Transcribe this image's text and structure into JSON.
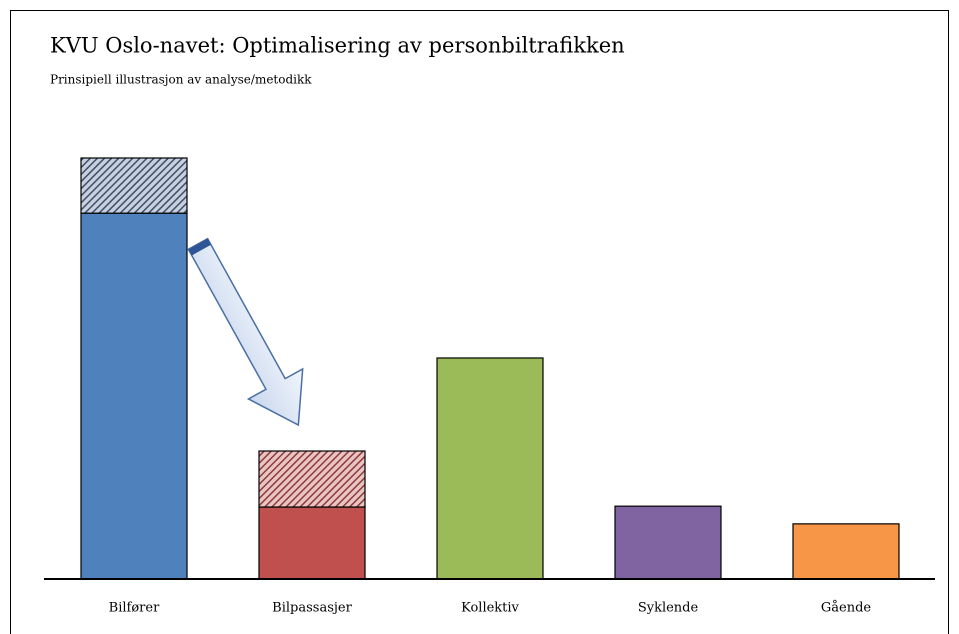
{
  "chart_data": {
    "type": "bar",
    "title": "KVU Oslo-navet: Optimalisering av personbiltrafikken",
    "subtitle": "Prinsipiell illustrasjon av analyse/metodikk",
    "categories": [
      "Bilfører",
      "Bilpassasjer",
      "Kollektiv",
      "Syklende",
      "Gående"
    ],
    "colors": [
      "#4f81bd",
      "#c0504d",
      "#9bbb59",
      "#8064a2",
      "#f79646"
    ],
    "series": [
      {
        "values": [
          86.9,
          17.1,
          52.5,
          17.3,
          13.1
        ]
      },
      {
        "values": [
          13.1,
          13.3,
          null,
          null,
          null
        ],
        "hatch": true
      }
    ],
    "ylim": [
      0,
      100
    ]
  }
}
